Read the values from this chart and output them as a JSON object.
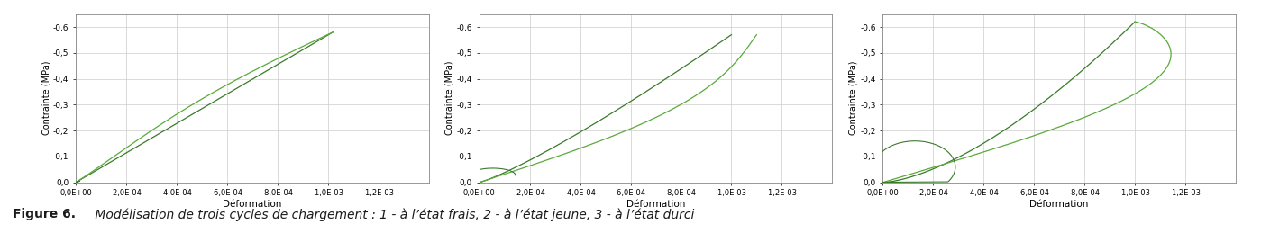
{
  "figure_caption_bold": "Figure 6.",
  "figure_caption_italic": " Modélisation de trois cycles de chargement : 1 - à l’état frais, 2 - à l’état jeune, 3 - à l’état durci",
  "ylabel": "Contrainte (MPa)",
  "xlabel": "Déformation",
  "xlim_min": 0.0,
  "xlim_max": -0.0014,
  "ylim_min": 0.0,
  "ylim_max": -0.65,
  "xticks": [
    0.0,
    -0.0002,
    -0.0004,
    -0.0006,
    -0.0008,
    -0.001,
    -0.0012
  ],
  "yticks": [
    0.0,
    -0.1,
    -0.2,
    -0.3,
    -0.4,
    -0.5,
    -0.6
  ],
  "line_color_dark": "#3a7a2a",
  "line_color_light": "#5aaa3a",
  "bg_color": "#ffffff",
  "grid_color": "#cccccc",
  "caption_bold": "Figure 6.",
  "caption_italic": " Modélisation de trois cycles de chargement : 1 - à l’état frais, 2 - à l’état jeune, 3 - à l’état durci"
}
